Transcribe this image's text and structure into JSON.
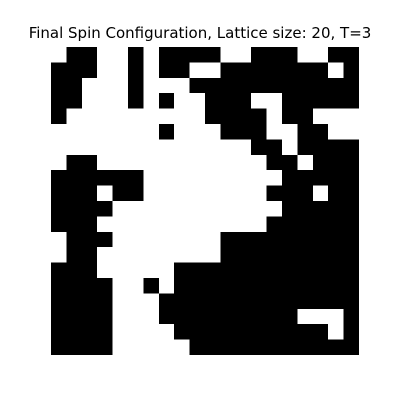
{
  "chart_data": {
    "type": "heatmap",
    "title": "Final Spin Configuration, Lattice size: 20, T=3",
    "xlabel": "",
    "ylabel": "",
    "axes_visible": false,
    "grid": false,
    "legend": "none",
    "size": 20,
    "colors": {
      "1": "#000000",
      "0": "#ffffff"
    },
    "rows": [
      "01100101111001110011",
      "11100101100111111101",
      "11000100011111111111",
      "11000101001110011111",
      "10000000001111011000",
      "00000001000111001100",
      "00000000000001101111",
      "01100000000000110111",
      "11111100000000011111",
      "11101100000000111011",
      "11110000000000011111",
      "11100000000000111111",
      "01110000000111111111",
      "01100000000111111111",
      "11100000111111111111",
      "11110010111111111111",
      "11110001111111111111",
      "11110001111111110001",
      "11110000111111111101",
      "11110000011111111111"
    ]
  }
}
